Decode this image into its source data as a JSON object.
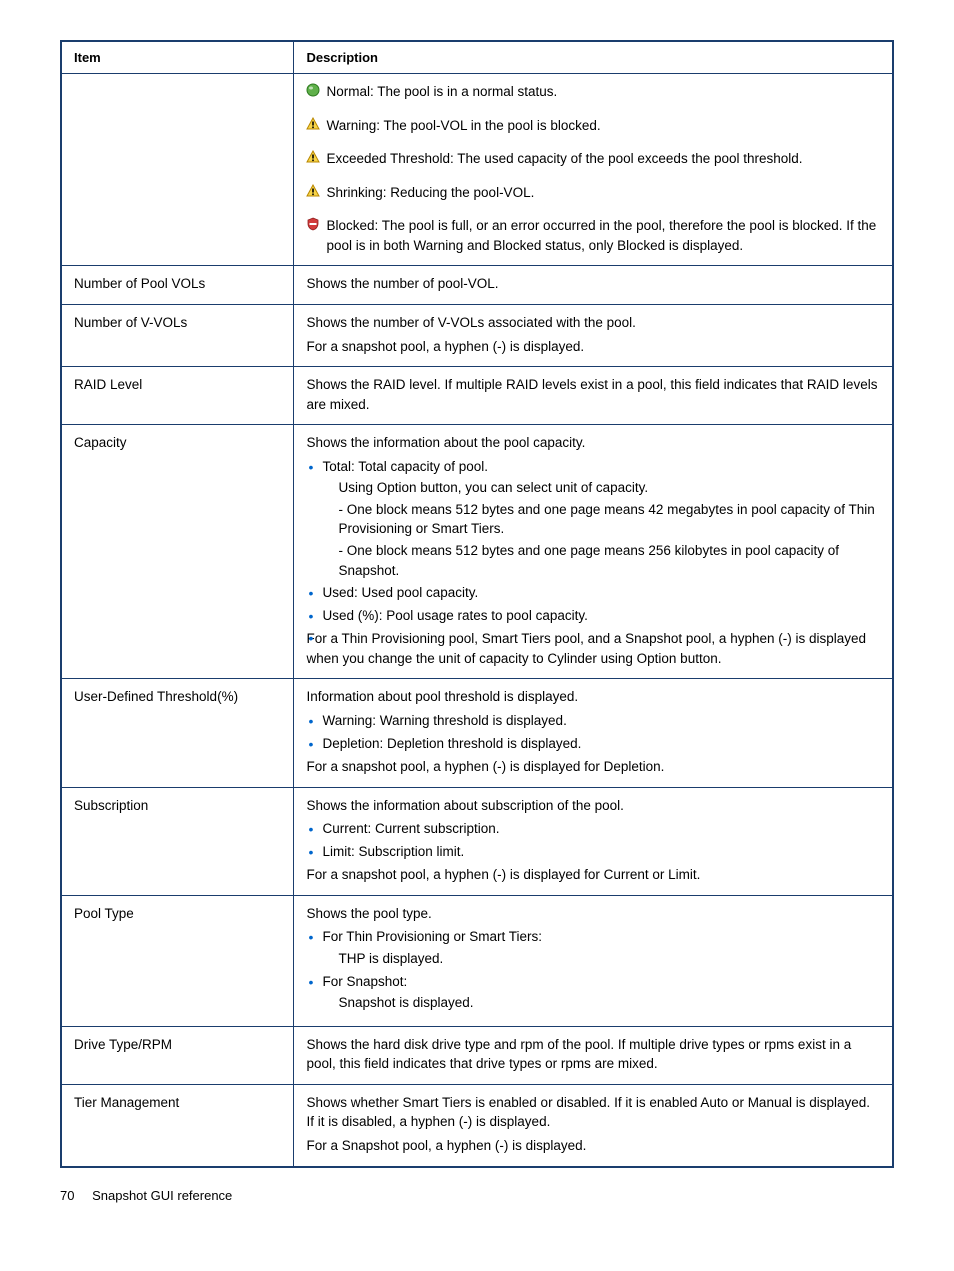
{
  "colors": {
    "table_border": "#1a3d6d",
    "bullet_color": "#0066cc",
    "text_color": "#000000",
    "background": "#ffffff",
    "icon_green": "#5fb04a",
    "icon_green_dark": "#2d7a1f",
    "icon_yellow": "#f7d448",
    "icon_yellow_border": "#b88700",
    "icon_red": "#d23b3b",
    "icon_white": "#ffffff"
  },
  "table": {
    "headers": {
      "item": "Item",
      "description": "Description"
    },
    "rows": [
      {
        "item": "",
        "type": "status",
        "statuses": [
          {
            "icon": "normal",
            "text": "Normal: The pool is in a normal status."
          },
          {
            "icon": "warning",
            "text": "Warning: The pool-VOL in the pool is blocked."
          },
          {
            "icon": "warning",
            "text": "Exceeded Threshold: The used capacity of the pool exceeds the pool threshold."
          },
          {
            "icon": "warning",
            "text": "Shrinking: Reducing the pool-VOL."
          },
          {
            "icon": "blocked",
            "text": "Blocked: The pool is full, or an error occurred in the pool, therefore the pool is blocked. If the pool is in both Warning and Blocked status, only Blocked is displayed."
          }
        ]
      },
      {
        "item": "Number of Pool VOLs",
        "type": "text",
        "lines": [
          "Shows the number of pool-VOL."
        ]
      },
      {
        "item": "Number of V-VOLs",
        "type": "text",
        "lines": [
          "Shows the number of V-VOLs associated with the pool.",
          "For a snapshot pool, a hyphen (-) is displayed."
        ]
      },
      {
        "item": "RAID Level",
        "type": "text",
        "lines": [
          "Shows the RAID level. If multiple RAID levels exist in a pool, this field indicates that RAID levels are mixed."
        ]
      },
      {
        "item": "Capacity",
        "type": "capacity",
        "intro": "Shows the information about the pool capacity.",
        "bullets": [
          {
            "text": "Total: Total capacity of pool.",
            "sub": [
              "Using Option button, you can select unit of capacity.",
              "- One block means 512 bytes and one page means 42 megabytes in pool capacity of Thin Provisioning or Smart Tiers.",
              "- One block means 512 bytes and one page means 256 kilobytes in pool capacity of Snapshot."
            ]
          },
          {
            "text": "Used: Used pool capacity."
          },
          {
            "text": "Used (%): Pool usage rates to pool capacity."
          },
          {
            "text": ""
          }
        ],
        "outro": "For a Thin Provisioning pool, Smart Tiers pool, and a Snapshot pool, a hyphen (-) is displayed when you change the unit of capacity to Cylinder using Option button."
      },
      {
        "item": "User-Defined Threshold(%)",
        "type": "list",
        "intro": "Information about pool threshold is displayed.",
        "bullets": [
          {
            "text": "Warning: Warning threshold is displayed."
          },
          {
            "text": "Depletion: Depletion threshold is displayed."
          }
        ],
        "outro": "For a snapshot pool, a hyphen (-) is displayed for Depletion."
      },
      {
        "item": "Subscription",
        "type": "list",
        "intro": "Shows the information about subscription of the pool.",
        "bullets": [
          {
            "text": "Current: Current subscription."
          },
          {
            "text": "Limit: Subscription limit."
          }
        ],
        "outro": "For a snapshot pool, a hyphen (-) is displayed for Current or Limit."
      },
      {
        "item": "Pool Type",
        "type": "list",
        "intro": "Shows the pool type.",
        "bullets": [
          {
            "text": "For Thin Provisioning or Smart Tiers:",
            "sub": [
              "THP is displayed."
            ]
          },
          {
            "text": "For Snapshot:",
            "sub": [
              "Snapshot is displayed."
            ]
          }
        ]
      },
      {
        "item": "Drive Type/RPM",
        "type": "text",
        "lines": [
          "Shows the hard disk drive type and rpm of the pool. If multiple drive types or rpms exist in a pool, this field indicates that drive types or rpms are mixed."
        ]
      },
      {
        "item": "Tier Management",
        "type": "text",
        "lines": [
          "Shows whether Smart Tiers is enabled or disabled. If it is enabled Auto or Manual is displayed. If it is disabled, a hyphen (-) is displayed.",
          "For a Snapshot pool, a hyphen (-) is displayed."
        ]
      }
    ]
  },
  "footer": {
    "page": "70",
    "title": "Snapshot GUI reference"
  }
}
